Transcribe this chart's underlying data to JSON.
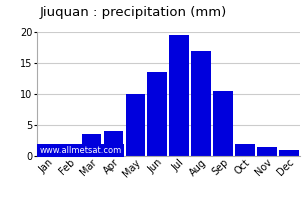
{
  "title": "Jiuquan : precipitation (mm)",
  "months": [
    "Jan",
    "Feb",
    "Mar",
    "Apr",
    "May",
    "Jun",
    "Jul",
    "Aug",
    "Sep",
    "Oct",
    "Nov",
    "Dec"
  ],
  "values": [
    1,
    1,
    3.5,
    4,
    10,
    13.5,
    19.5,
    17,
    10.5,
    2,
    1.5,
    1
  ],
  "bar_color": "#0000dd",
  "ylim": [
    0,
    20
  ],
  "yticks": [
    0,
    5,
    10,
    15,
    20
  ],
  "background_color": "#ffffff",
  "grid_color": "#cccccc",
  "title_fontsize": 9.5,
  "tick_fontsize": 7,
  "watermark": "www.allmetsat.com",
  "watermark_bg": "#0000dd",
  "watermark_color": "#ffffff"
}
